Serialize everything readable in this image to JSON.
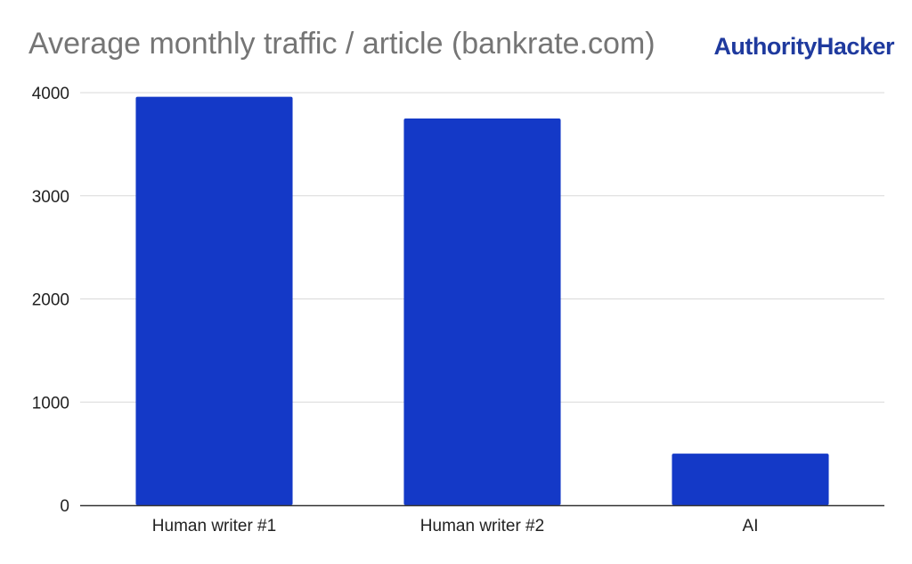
{
  "brand": {
    "logo_text": "AuthorityHacker",
    "color": "#1f3a9e"
  },
  "chart_data": {
    "type": "bar",
    "title": "Average monthly traffic / article (bankrate.com)",
    "xlabel": "",
    "ylabel": "",
    "categories": [
      "Human writer #1",
      "Human writer #2",
      "AI"
    ],
    "values": [
      3960,
      3750,
      500
    ],
    "ylim": [
      0,
      4000
    ],
    "yticks": [
      0,
      1000,
      2000,
      3000,
      4000
    ],
    "grid": true,
    "legend": "none",
    "bar_color": "#1439c7"
  }
}
